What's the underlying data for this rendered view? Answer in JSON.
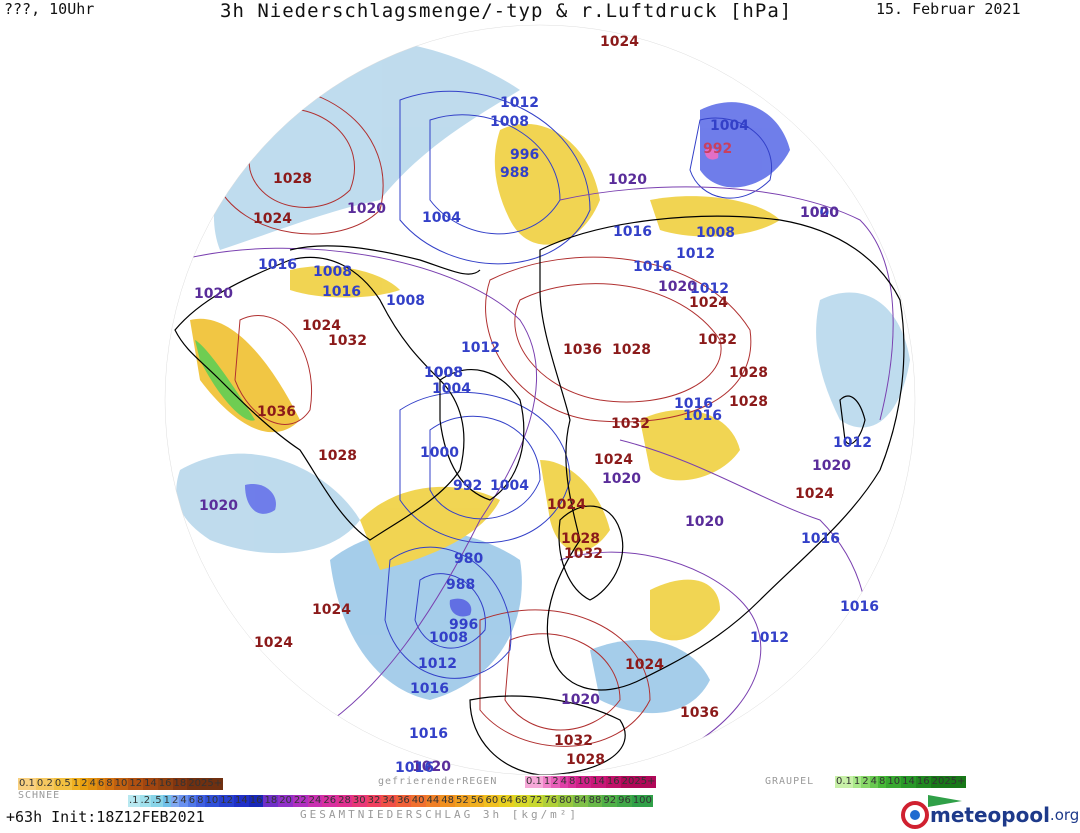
{
  "header": {
    "left": "???, 10Uhr",
    "title": "3h Niederschlagsmenge/-typ & r.Luftdruck [hPa]",
    "date": "15. Februar 2021"
  },
  "map": {
    "pressure_labels": [
      {
        "text": "1024",
        "color": "#8b1a1a"
      },
      {
        "text": "1012",
        "color": "#3340c8"
      },
      {
        "text": "1008",
        "color": "#3340c8"
      },
      {
        "text": "1004",
        "color": "#3340c8"
      },
      {
        "text": "992",
        "color": "#c84060"
      },
      {
        "text": "996",
        "color": "#3340c8"
      },
      {
        "text": "988",
        "color": "#3340c8"
      },
      {
        "text": "1028",
        "color": "#8b1a1a"
      },
      {
        "text": "1024",
        "color": "#8b1a1a"
      },
      {
        "text": "1020",
        "color": "#5a2d9a"
      },
      {
        "text": "1004",
        "color": "#3340c8"
      },
      {
        "text": "1020",
        "color": "#5a2d9a"
      },
      {
        "text": "1016",
        "color": "#3340c8"
      },
      {
        "text": "1008",
        "color": "#3340c8"
      },
      {
        "text": "1020",
        "color": "#5a2d9a"
      },
      {
        "text": "1016",
        "color": "#3340c8"
      },
      {
        "text": "1008",
        "color": "#3340c8"
      },
      {
        "text": "1016",
        "color": "#3340c8"
      },
      {
        "text": "1012",
        "color": "#3340c8"
      },
      {
        "text": "1016",
        "color": "#3340c8"
      },
      {
        "text": "1008",
        "color": "#3340c8"
      },
      {
        "text": "1000",
        "color": "#3340c8"
      },
      {
        "text": "1012",
        "color": "#3340c8"
      },
      {
        "text": "1020",
        "color": "#5a2d9a"
      },
      {
        "text": "1016",
        "color": "#3340c8"
      },
      {
        "text": "1020",
        "color": "#5a2d9a"
      },
      {
        "text": "1024",
        "color": "#8b1a1a"
      },
      {
        "text": "1024",
        "color": "#8b1a1a"
      },
      {
        "text": "1032",
        "color": "#8b1a1a"
      },
      {
        "text": "1012",
        "color": "#3340c8"
      },
      {
        "text": "1036",
        "color": "#8b1a1a"
      },
      {
        "text": "1028",
        "color": "#8b1a1a"
      },
      {
        "text": "1032",
        "color": "#8b1a1a"
      },
      {
        "text": "1008",
        "color": "#3340c8"
      },
      {
        "text": "1008",
        "color": "#3340c8"
      },
      {
        "text": "1004",
        "color": "#3340c8"
      },
      {
        "text": "1028",
        "color": "#8b1a1a"
      },
      {
        "text": "1028",
        "color": "#8b1a1a"
      },
      {
        "text": "1036",
        "color": "#8b1a1a"
      },
      {
        "text": "1032",
        "color": "#8b1a1a"
      },
      {
        "text": "1016",
        "color": "#3340c8"
      },
      {
        "text": "1012",
        "color": "#3340c8"
      },
      {
        "text": "1028",
        "color": "#8b1a1a"
      },
      {
        "text": "1000",
        "color": "#3340c8"
      },
      {
        "text": "1024",
        "color": "#8b1a1a"
      },
      {
        "text": "1020",
        "color": "#5a2d9a"
      },
      {
        "text": "1020",
        "color": "#5a2d9a"
      },
      {
        "text": "992",
        "color": "#3340c8"
      },
      {
        "text": "1004",
        "color": "#3340c8"
      },
      {
        "text": "1024",
        "color": "#8b1a1a"
      },
      {
        "text": "1016",
        "color": "#3340c8"
      },
      {
        "text": "1020",
        "color": "#5a2d9a"
      },
      {
        "text": "1024",
        "color": "#8b1a1a"
      },
      {
        "text": "1020",
        "color": "#5a2d9a"
      },
      {
        "text": "1028",
        "color": "#8b1a1a"
      },
      {
        "text": "1032",
        "color": "#8b1a1a"
      },
      {
        "text": "980",
        "color": "#3340c8"
      },
      {
        "text": "988",
        "color": "#3340c8"
      },
      {
        "text": "1016",
        "color": "#3340c8"
      },
      {
        "text": "996",
        "color": "#3340c8"
      },
      {
        "text": "1024",
        "color": "#8b1a1a"
      },
      {
        "text": "1008",
        "color": "#3340c8"
      },
      {
        "text": "1012",
        "color": "#3340c8"
      },
      {
        "text": "1024",
        "color": "#8b1a1a"
      },
      {
        "text": "1012",
        "color": "#3340c8"
      },
      {
        "text": "1016",
        "color": "#3340c8"
      },
      {
        "text": "1024",
        "color": "#8b1a1a"
      },
      {
        "text": "1020",
        "color": "#5a2d9a"
      },
      {
        "text": "1036",
        "color": "#8b1a1a"
      },
      {
        "text": "1016",
        "color": "#3340c8"
      },
      {
        "text": "1020",
        "color": "#5a2d9a"
      },
      {
        "text": "1032",
        "color": "#8b1a1a"
      },
      {
        "text": "1028",
        "color": "#8b1a1a"
      },
      {
        "text": "1016",
        "color": "#3340c8"
      }
    ]
  },
  "legends": {
    "snow": {
      "label": "SCHNEE",
      "items": [
        {
          "t": "0.1",
          "c": "#f8d080"
        },
        {
          "t": "0.2",
          "c": "#f5c860"
        },
        {
          "t": "0.5",
          "c": "#f2c040"
        },
        {
          "t": "1",
          "c": "#f0b020"
        },
        {
          "t": "2",
          "c": "#e8a010"
        },
        {
          "t": "4",
          "c": "#e09010"
        },
        {
          "t": "6",
          "c": "#d88010"
        },
        {
          "t": "8",
          "c": "#d07010"
        },
        {
          "t": "10",
          "c": "#c06010"
        },
        {
          "t": "12",
          "c": "#b05010"
        },
        {
          "t": "14",
          "c": "#a04510"
        },
        {
          "t": "16",
          "c": "#904010"
        },
        {
          "t": "18",
          "c": "#803510"
        },
        {
          "t": "2025+",
          "c": "#703010"
        }
      ]
    },
    "freezing_rain": {
      "label": "gefrierenderREGEN",
      "items": [
        {
          "t": "0.1",
          "c": "#f6a8d8"
        },
        {
          "t": "1",
          "c": "#f080c8"
        },
        {
          "t": "2",
          "c": "#e860b8"
        },
        {
          "t": "4",
          "c": "#e040a8"
        },
        {
          "t": "8",
          "c": "#d83098"
        },
        {
          "t": "10",
          "c": "#d02088"
        },
        {
          "t": "14",
          "c": "#c81878"
        },
        {
          "t": "16",
          "c": "#c01068"
        },
        {
          "t": "2025+",
          "c": "#b00858"
        }
      ]
    },
    "graupel": {
      "label": "GRAUPEL",
      "items": [
        {
          "t": "0.1",
          "c": "#c8f0a8"
        },
        {
          "t": "1",
          "c": "#a8e888"
        },
        {
          "t": "2",
          "c": "#88d868"
        },
        {
          "t": "4",
          "c": "#68c850"
        },
        {
          "t": "8",
          "c": "#48b838"
        },
        {
          "t": "10",
          "c": "#38a830"
        },
        {
          "t": "14",
          "c": "#289828"
        },
        {
          "t": "16",
          "c": "#208820"
        },
        {
          "t": "2025+",
          "c": "#187818"
        }
      ]
    },
    "total": {
      "label": "GESAMTNIEDERSCHLAG 3h [kg/m²]",
      "items": [
        {
          "t": ".1",
          "c": "#b8e8f0"
        },
        {
          "t": ".2",
          "c": "#a0e0ec"
        },
        {
          "t": ".5",
          "c": "#88d4e8"
        },
        {
          "t": "1",
          "c": "#70c0e8"
        },
        {
          "t": "2",
          "c": "#80a8f0"
        },
        {
          "t": "4",
          "c": "#6890f0"
        },
        {
          "t": "6",
          "c": "#5078e8"
        },
        {
          "t": "8",
          "c": "#4060e0"
        },
        {
          "t": "10",
          "c": "#3050d8"
        },
        {
          "t": "12",
          "c": "#2840d0"
        },
        {
          "t": "14",
          "c": "#2030c8"
        },
        {
          "t": "16",
          "c": "#1828b8"
        },
        {
          "t": "18",
          "c": "#7030c8"
        },
        {
          "t": "20",
          "c": "#9030c8"
        },
        {
          "t": "22",
          "c": "#b030c0"
        },
        {
          "t": "24",
          "c": "#c830b0"
        },
        {
          "t": "26",
          "c": "#d830a0"
        },
        {
          "t": "28",
          "c": "#e03090"
        },
        {
          "t": "30",
          "c": "#e83878"
        },
        {
          "t": "32",
          "c": "#f04060"
        },
        {
          "t": "34",
          "c": "#f05048"
        },
        {
          "t": "36",
          "c": "#f06038"
        },
        {
          "t": "40",
          "c": "#f07030"
        },
        {
          "t": "44",
          "c": "#f08028"
        },
        {
          "t": "48",
          "c": "#f09020"
        },
        {
          "t": "52",
          "c": "#f0a020"
        },
        {
          "t": "56",
          "c": "#f0b020"
        },
        {
          "t": "60",
          "c": "#f0c020"
        },
        {
          "t": "64",
          "c": "#e8d020"
        },
        {
          "t": "68",
          "c": "#d8d828"
        },
        {
          "t": "72",
          "c": "#c8d830"
        },
        {
          "t": "76",
          "c": "#b0d038"
        },
        {
          "t": "80",
          "c": "#98c840"
        },
        {
          "t": "84",
          "c": "#80c048"
        },
        {
          "t": "88",
          "c": "#68b848"
        },
        {
          "t": "92",
          "c": "#50b048"
        },
        {
          "t": "96",
          "c": "#40a848"
        },
        {
          "t": "100",
          "c": "#30a048"
        }
      ]
    }
  },
  "footer": {
    "run_info": "+63h  Init:18Z12FEB2021",
    "logo": "meteopool",
    "logo_ext": ".org"
  }
}
